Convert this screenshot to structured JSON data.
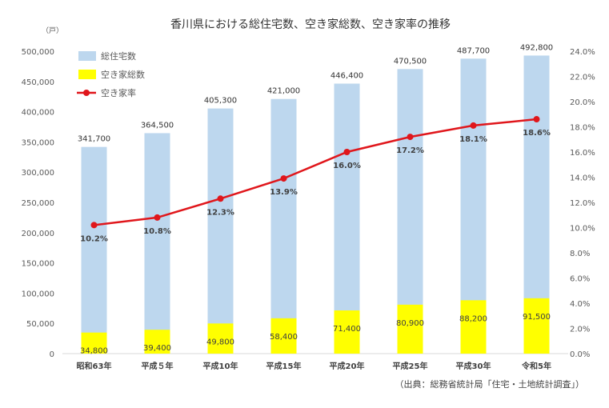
{
  "chart_data": {
    "type": "bar",
    "title": "香川県における総住宅数、空き家総数、空き家率の推移",
    "unit_label": "（戸）",
    "categories": [
      "昭和63年",
      "平成５年",
      "平成10年",
      "平成15年",
      "平成20年",
      "平成25年",
      "平成30年",
      "令和5年"
    ],
    "series": [
      {
        "name": "総住宅数",
        "type": "bar",
        "axis": "left",
        "color": "#bdd7ee",
        "values": [
          341700,
          364500,
          405300,
          421000,
          446400,
          470500,
          487700,
          492800
        ],
        "labels": [
          "341,700",
          "364,500",
          "405,300",
          "421,000",
          "446,400",
          "470,500",
          "487,700",
          "492,800"
        ]
      },
      {
        "name": "空き家総数",
        "type": "bar",
        "axis": "left",
        "color": "#ffff00",
        "values": [
          34800,
          39400,
          49800,
          58400,
          71400,
          80900,
          88200,
          91500
        ],
        "labels": [
          "34,800",
          "39,400",
          "49,800",
          "58,400",
          "71,400",
          "80,900",
          "88,200",
          "91,500"
        ]
      },
      {
        "name": "空き家率",
        "type": "line",
        "axis": "right",
        "color": "#e0161b",
        "values": [
          10.2,
          10.8,
          12.3,
          13.9,
          16.0,
          17.2,
          18.1,
          18.6
        ],
        "labels": [
          "10.2%",
          "10.8%",
          "12.3%",
          "13.9%",
          "16.0%",
          "17.2%",
          "18.1%",
          "18.6%"
        ]
      }
    ],
    "y_left": {
      "min": 0,
      "max": 500000,
      "ticks": [
        0,
        50000,
        100000,
        150000,
        200000,
        250000,
        300000,
        350000,
        400000,
        450000,
        500000
      ],
      "tick_labels": [
        "0",
        "50,000",
        "100,000",
        "150,000",
        "200,000",
        "250,000",
        "300,000",
        "350,000",
        "400,000",
        "450,000",
        "500,000"
      ]
    },
    "y_right": {
      "min": 0,
      "max": 24,
      "ticks": [
        0,
        2,
        4,
        6,
        8,
        10,
        12,
        14,
        16,
        18,
        20,
        22,
        24
      ],
      "tick_labels": [
        "0.0%",
        "2.0%",
        "4.0%",
        "6.0%",
        "8.0%",
        "10.0%",
        "12.0%",
        "14.0%",
        "16.0%",
        "18.0%",
        "20.0%",
        "22.0%",
        "24.0%"
      ]
    },
    "grid": false,
    "legend_position": "top-left",
    "source": "（出典：総務省統計局「住宅・土地統計調査」）"
  }
}
